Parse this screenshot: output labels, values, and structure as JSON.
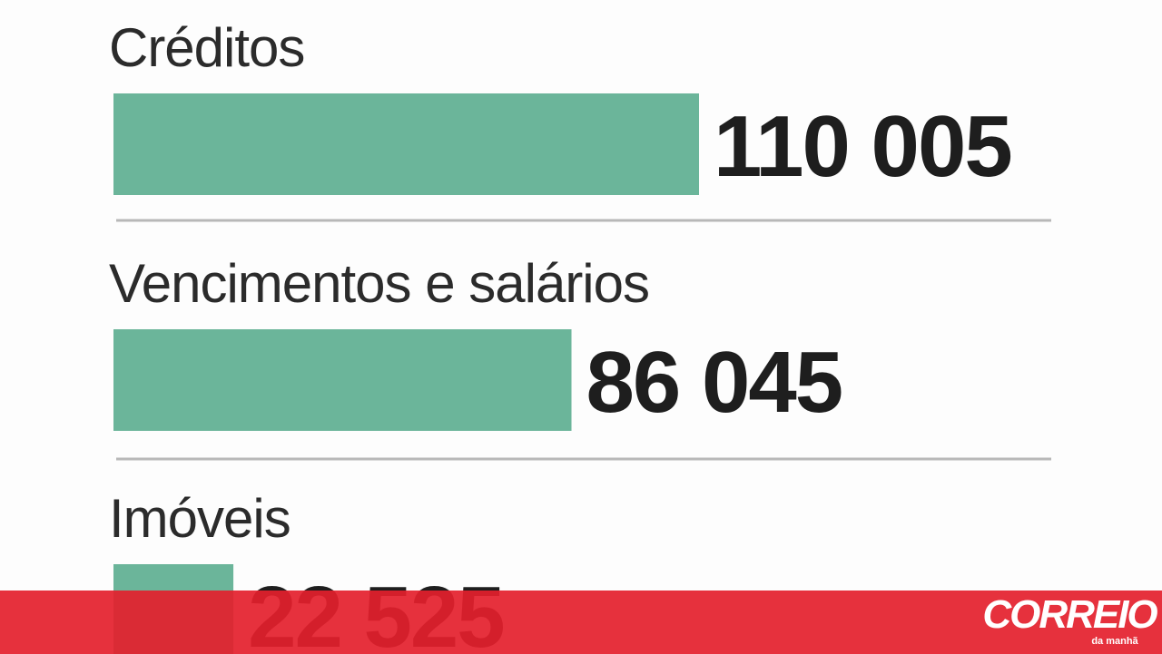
{
  "chart_data": {
    "type": "bar",
    "orientation": "horizontal",
    "categories": [
      "Créditos",
      "Vencimentos e salários",
      "Imóveis"
    ],
    "values": [
      110005,
      86045,
      22525
    ],
    "value_labels": [
      "110 005",
      "86 045",
      "22 525"
    ],
    "color": "#6bb59a"
  },
  "banner": {
    "logo": "CORREIO",
    "tagline": "da manhã"
  }
}
